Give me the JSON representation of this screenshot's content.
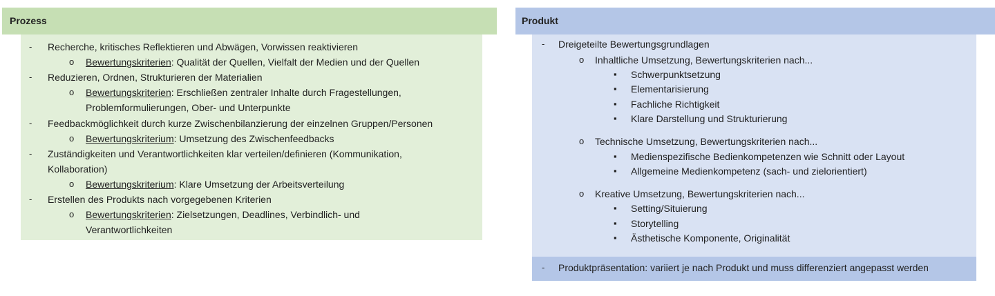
{
  "prozess": {
    "title": "Prozess",
    "lines": [
      {
        "level": 1,
        "text": "Recherche, kritisches Reflektieren und Abwägen, Vorwissen reaktivieren"
      },
      {
        "level": 2,
        "label": "Bewertungskriterien",
        "text": ": Qualität der Quellen, Vielfalt der Medien und der Quellen"
      },
      {
        "level": 1,
        "text": "Reduzieren, Ordnen, Strukturieren der Materialien"
      },
      {
        "level": 2,
        "label": "Bewertungskriterien",
        "text": ": Erschließen zentraler Inhalte durch Fragestellungen,"
      },
      {
        "level": 2,
        "cont": true,
        "text": "Problemformulierungen, Ober- und Unterpunkte"
      },
      {
        "level": 1,
        "text": "Feedbackmöglichkeit durch kurze Zwischenbilanzierung der einzelnen Gruppen/Personen"
      },
      {
        "level": 2,
        "label": "Bewertungskriterium",
        "text": ": Umsetzung des Zwischenfeedbacks"
      },
      {
        "level": 1,
        "text": "Zuständigkeiten und Verantwortlichkeiten klar verteilen/definieren (Kommunikation,"
      },
      {
        "level": 1,
        "cont": true,
        "text": "Kollaboration)"
      },
      {
        "level": 2,
        "label": "Bewertungskriterium",
        "text": ": Klare Umsetzung der Arbeitsverteilung"
      },
      {
        "level": 1,
        "text": "Erstellen des Produkts nach vorgegebenen Kriterien"
      },
      {
        "level": 2,
        "label": "Bewertungskriterien",
        "text": ": Zielsetzungen, Deadlines, Verbindlich- und"
      },
      {
        "level": 2,
        "cont": true,
        "text": "Verantwortlichkeiten"
      }
    ]
  },
  "produkt": {
    "title": "Produkt",
    "lines": [
      {
        "level": 1,
        "text": "Dreigeteilte Bewertungsgrundlagen"
      },
      {
        "level": 2,
        "text": "Inhaltliche Umsetzung, Bewertungskriterien nach..."
      },
      {
        "level": 3,
        "text": "Schwerpunktsetzung"
      },
      {
        "level": 3,
        "text": "Elementarisierung"
      },
      {
        "level": 3,
        "text": "Fachliche Richtigkeit"
      },
      {
        "level": 3,
        "text": "Klare Darstellung und Strukturierung"
      },
      {
        "level": 2,
        "text": "Technische Umsetzung, Bewertungskriterien nach..."
      },
      {
        "level": 3,
        "text": "Medienspezifische Bedienkompetenzen wie Schnitt oder Layout"
      },
      {
        "level": 3,
        "text": "Allgemeine Medienkompetenz (sach- und zielorientiert)"
      },
      {
        "level": 2,
        "text": "Kreative Umsetzung, Bewertungskriterien nach..."
      },
      {
        "level": 3,
        "text": "Setting/Situierung"
      },
      {
        "level": 3,
        "text": "Storytelling"
      },
      {
        "level": 3,
        "text": "Ästhetische Komponente, Originalität"
      }
    ],
    "presentation": "Produktpräsentation: variiert je nach Produkt und muss differenziert angepasst werden"
  },
  "bullets": {
    "level1": "-",
    "level2": "o",
    "level3": "▪"
  },
  "colors": {
    "prozess_header": "#c6dfb4",
    "prozess_body": "#e2efd9",
    "produkt_header": "#b4c6e7",
    "produkt_body": "#d9e2f3"
  }
}
